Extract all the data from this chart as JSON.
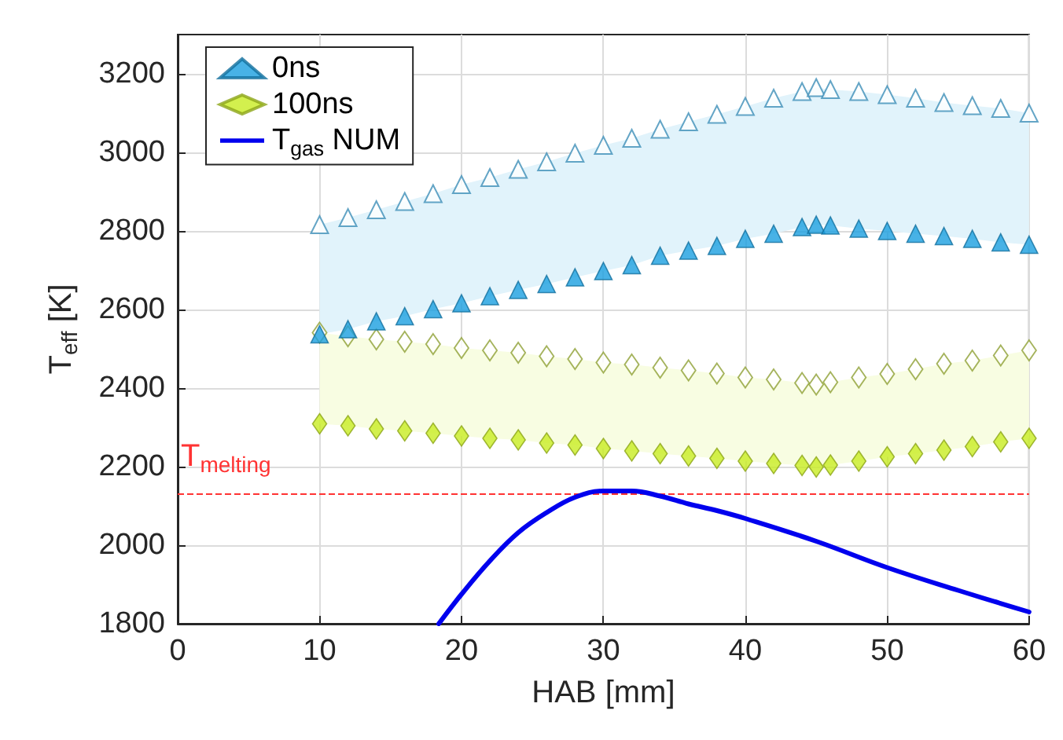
{
  "chart_data": {
    "type": "scatter",
    "xlabel": "HAB [mm]",
    "ylabel": "T$_{eff}$ [K]",
    "xlim": [
      0,
      60
    ],
    "xticks": [
      0,
      10,
      20,
      30,
      40,
      50,
      60
    ],
    "ylim": [
      1800,
      3300
    ],
    "yticks": [
      1800,
      2000,
      2200,
      2400,
      2600,
      2800,
      3000,
      3200
    ],
    "grid": true,
    "legend": "top left",
    "x": [
      10,
      12,
      14,
      16,
      18,
      20,
      22,
      24,
      26,
      28,
      30,
      32,
      34,
      36,
      38,
      40,
      42,
      44,
      45,
      46,
      48,
      50,
      52,
      54,
      56,
      58,
      60
    ],
    "series": [
      {
        "name": "0ns",
        "marker": "triangle",
        "color": "#1a9fe0",
        "values": [
          2537,
          2550,
          2570,
          2583,
          2601,
          2616,
          2634,
          2650,
          2665,
          2682,
          2698,
          2713,
          2737,
          2750,
          2762,
          2780,
          2793,
          2810,
          2816,
          2814,
          2806,
          2800,
          2793,
          2787,
          2780,
          2771,
          2765
        ],
        "lower": [
          2537,
          2550,
          2570,
          2583,
          2601,
          2616,
          2634,
          2650,
          2665,
          2682,
          2698,
          2713,
          2737,
          2750,
          2762,
          2780,
          2793,
          2810,
          2816,
          2814,
          2806,
          2800,
          2793,
          2787,
          2780,
          2771,
          2765
        ],
        "upper": [
          2816,
          2834,
          2854,
          2875,
          2895,
          2918,
          2936,
          2957,
          2976,
          2998,
          3018,
          3036,
          3059,
          3078,
          3097,
          3117,
          3138,
          3155,
          3165,
          3160,
          3155,
          3147,
          3138,
          3127,
          3119,
          3112,
          3100
        ]
      },
      {
        "marker": "triangle",
        "color": "#3d8fb8",
        "values": [
          2816,
          2834,
          2854,
          2875,
          2895,
          2918,
          2936,
          2957,
          2976,
          2998,
          3018,
          3036,
          3059,
          3078,
          3097,
          3117,
          3138,
          3155,
          3165,
          3160,
          3155,
          3147,
          3138,
          3127,
          3119,
          3112,
          3100
        ]
      },
      {
        "name": "100ns",
        "marker": "diamond",
        "color": "#c8ec22",
        "values": [
          2309,
          2304,
          2296,
          2291,
          2285,
          2278,
          2272,
          2268,
          2260,
          2255,
          2246,
          2240,
          2233,
          2227,
          2221,
          2214,
          2208,
          2203,
          2199,
          2204,
          2214,
          2225,
          2233,
          2242,
          2251,
          2263,
          2272
        ],
        "lower": [
          2309,
          2304,
          2296,
          2291,
          2285,
          2278,
          2272,
          2268,
          2260,
          2255,
          2246,
          2240,
          2233,
          2227,
          2221,
          2214,
          2208,
          2203,
          2199,
          2204,
          2214,
          2225,
          2233,
          2242,
          2251,
          2263,
          2272
        ],
        "upper": [
          2541,
          2532,
          2524,
          2518,
          2512,
          2502,
          2496,
          2490,
          2481,
          2474,
          2465,
          2460,
          2452,
          2445,
          2437,
          2427,
          2422,
          2413,
          2409,
          2415,
          2427,
          2436,
          2448,
          2462,
          2470,
          2483,
          2496
        ]
      },
      {
        "marker": "diamond",
        "color": "#8fa035",
        "values": [
          2541,
          2532,
          2524,
          2518,
          2512,
          2502,
          2496,
          2490,
          2481,
          2474,
          2465,
          2460,
          2452,
          2445,
          2437,
          2427,
          2422,
          2413,
          2409,
          2415,
          2427,
          2436,
          2448,
          2462,
          2470,
          2483,
          2496
        ]
      },
      {
        "name": "T$_{gas}$ NUM",
        "type": "line",
        "marker": "none",
        "line_style": "solid",
        "color": "#0000ee",
        "x": [
          18.4,
          20,
          22,
          24,
          26,
          28,
          30,
          32,
          34,
          36,
          38,
          40,
          45,
          50,
          55,
          60
        ],
        "values": [
          1800,
          1875,
          1960,
          2032,
          2083,
          2122,
          2138,
          2138,
          2125,
          2105,
          2088,
          2068,
          2010,
          1943,
          1885,
          1830
        ]
      }
    ],
    "ref_lines": [
      {
        "axis": "y",
        "value": 2130,
        "label": "T$_{melting}$",
        "color": "#ff3333",
        "line_style": "dashed"
      }
    ]
  }
}
